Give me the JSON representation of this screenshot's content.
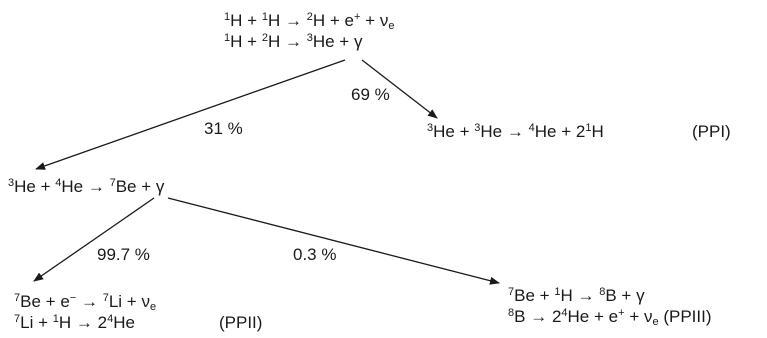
{
  "nodes": {
    "top": {
      "line1": {
        "a_mass": "1",
        "a_sym": "H",
        "plus1": "+",
        "b_mass": "1",
        "b_sym": "H",
        "arrow": "→",
        "c_mass": "2",
        "c_sym": "H",
        "plus2": "+",
        "d_sym": "e",
        "d_charge": "+",
        "plus3": "+",
        "e_sym": "ν",
        "e_sub": "e"
      },
      "line2": {
        "a_mass": "1",
        "a_sym": "H",
        "plus1": "+",
        "b_mass": "2",
        "b_sym": "H",
        "arrow": "→",
        "c_mass": "3",
        "c_sym": "He",
        "plus2": "+",
        "d_sym": "γ"
      }
    },
    "ppi": {
      "line1": {
        "a_mass": "3",
        "a_sym": "He",
        "plus1": "+",
        "b_mass": "3",
        "b_sym": "He",
        "arrow": "→",
        "c_mass": "4",
        "c_sym": "He",
        "plus2": "+",
        "d_coef": "2",
        "d_mass": "1",
        "d_sym": "H"
      },
      "label": "(PPI)"
    },
    "middle": {
      "line1": {
        "a_mass": "3",
        "a_sym": "He",
        "plus1": "+",
        "b_mass": "4",
        "b_sym": "He",
        "arrow": "→",
        "c_mass": "7",
        "c_sym": "Be",
        "plus2": "+",
        "d_sym": "γ"
      }
    },
    "ppii": {
      "line1": {
        "a_mass": "7",
        "a_sym": "Be",
        "plus1": "+",
        "b_sym": "e",
        "b_charge": "−",
        "arrow": "→",
        "c_mass": "7",
        "c_sym": "Li",
        "plus2": "+",
        "d_sym": "ν",
        "d_sub": "e"
      },
      "line2": {
        "a_mass": "7",
        "a_sym": "Li",
        "plus1": "+",
        "b_mass": "1",
        "b_sym": "H",
        "arrow": "→",
        "c_coef": "2",
        "c_mass": "4",
        "c_sym": "He"
      },
      "label": "(PPII)"
    },
    "ppiii": {
      "line1": {
        "a_mass": "7",
        "a_sym": "Be",
        "plus1": "+",
        "b_mass": "1",
        "b_sym": "H",
        "arrow": "→",
        "c_mass": "8",
        "c_sym": "B",
        "plus2": "+",
        "d_sym": "γ"
      },
      "line2": {
        "a_mass": "8",
        "a_sym": "B",
        "arrow": "→",
        "b_coef": "2",
        "b_mass": "4",
        "b_sym": "He",
        "plus1": "+",
        "c_sym": "e",
        "c_charge": "+",
        "plus2": "+",
        "d_sym": "ν",
        "d_sub": "e"
      },
      "label": "(PPIII)"
    }
  },
  "branches": {
    "top_to_ppi": "69 %",
    "top_to_middle": "31 %",
    "middle_to_ppii": "99.7 %",
    "middle_to_ppiii": "0.3 %"
  }
}
